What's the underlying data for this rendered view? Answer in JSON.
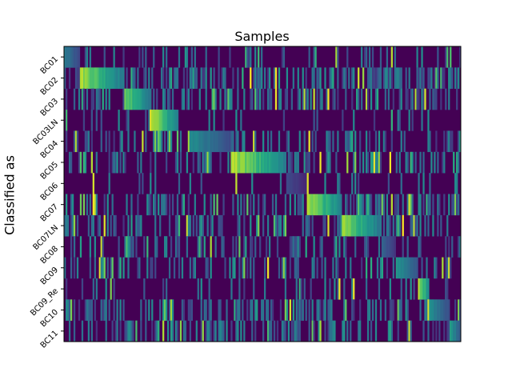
{
  "chart_data": {
    "type": "heatmap",
    "title": "Samples",
    "xlabel": "",
    "ylabel": "Classified as",
    "colormap": "viridis",
    "colors": {
      "low": "#440154",
      "high": "#fde725",
      "axes": "#000000",
      "background": "#ffffff"
    },
    "x_ticks_shown": false,
    "n_samples_approx": 250,
    "rows": [
      "BC01",
      "BC02",
      "BC03",
      "BC03LN",
      "BC04",
      "BC05",
      "BC06",
      "BC07",
      "BC07LN",
      "BC08",
      "BC09",
      "BC09_Re",
      "BC10",
      "BC11"
    ],
    "blocks": [
      {
        "row": "BC01",
        "start": 0.0,
        "end": 0.04,
        "peak": 0.45
      },
      {
        "row": "BC02",
        "start": 0.04,
        "end": 0.15,
        "peak": 0.95
      },
      {
        "row": "BC03",
        "start": 0.15,
        "end": 0.22,
        "peak": 0.85
      },
      {
        "row": "BC03LN",
        "start": 0.215,
        "end": 0.285,
        "peak": 1.0
      },
      {
        "row": "BC04",
        "start": 0.315,
        "end": 0.42,
        "peak": 0.55
      },
      {
        "row": "BC05",
        "start": 0.42,
        "end": 0.56,
        "peak": 0.98
      },
      {
        "row": "BC06",
        "start": 0.56,
        "end": 0.61,
        "peak": 0.25
      },
      {
        "row": "BC07",
        "start": 0.61,
        "end": 0.7,
        "peak": 0.98
      },
      {
        "row": "BC07LN",
        "start": 0.7,
        "end": 0.8,
        "peak": 0.9
      },
      {
        "row": "BC08",
        "start": 0.8,
        "end": 0.835,
        "peak": 0.35
      },
      {
        "row": "BC09",
        "start": 0.835,
        "end": 0.89,
        "peak": 0.6
      },
      {
        "row": "BC09_Re",
        "start": 0.89,
        "end": 0.92,
        "peak": 1.0
      },
      {
        "row": "BC10",
        "start": 0.92,
        "end": 0.97,
        "peak": 0.55
      },
      {
        "row": "BC11",
        "start": 0.97,
        "end": 1.0,
        "peak": 0.6
      }
    ],
    "noise_density": [
      0.25,
      0.55,
      0.45,
      0.12,
      0.35,
      0.4,
      0.1,
      0.4,
      0.45,
      0.3,
      0.3,
      0.15,
      0.45,
      0.4
    ],
    "grid": false,
    "legend": "none"
  }
}
